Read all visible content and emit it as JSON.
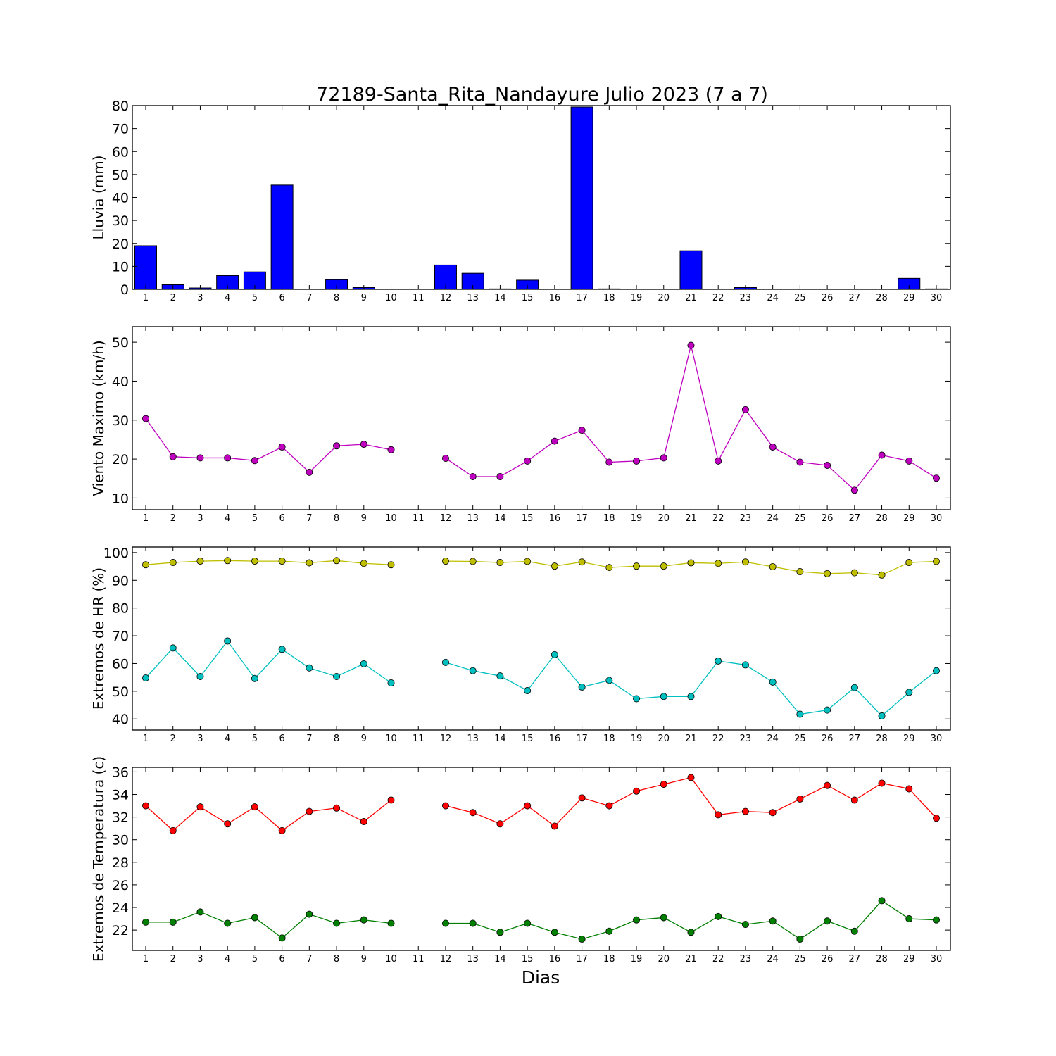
{
  "chart_data": [
    {
      "type": "bar",
      "title": "72189-Santa_Rita_Nandayure Julio 2023  (7 a 7)",
      "ylabel": "Lluvia (mm)",
      "xlabel": "",
      "ylim": [
        0,
        80
      ],
      "yticks": [
        0,
        10,
        20,
        30,
        40,
        50,
        60,
        70,
        80
      ],
      "categories": [
        "1",
        "2",
        "3",
        "4",
        "5",
        "6",
        "7",
        "8",
        "9",
        "10",
        "11",
        "12",
        "13",
        "14",
        "15",
        "16",
        "17",
        "18",
        "19",
        "20",
        "21",
        "22",
        "23",
        "24",
        "25",
        "26",
        "27",
        "28",
        "29",
        "30"
      ],
      "series": [
        {
          "values": [
            19.0,
            2.0,
            0.6,
            6.0,
            7.6,
            45.4,
            0.0,
            4.2,
            0.8,
            0.0,
            null,
            10.6,
            7.0,
            0.2,
            4.0,
            0.0,
            79.4,
            0.2,
            0.0,
            0.0,
            16.8,
            0.0,
            0.8,
            0.0,
            0.0,
            0.0,
            0.0,
            0.0,
            4.8,
            0.2
          ],
          "color": "#0000ff"
        }
      ],
      "grid": false
    },
    {
      "type": "line",
      "title": "",
      "ylabel": "Viento Maximo (km/h)",
      "xlabel": "",
      "ylim": [
        7,
        54
      ],
      "yticks": [
        10,
        20,
        30,
        40,
        50
      ],
      "categories": [
        "1",
        "2",
        "3",
        "4",
        "5",
        "6",
        "7",
        "8",
        "9",
        "10",
        "11",
        "12",
        "13",
        "14",
        "15",
        "16",
        "17",
        "18",
        "19",
        "20",
        "21",
        "22",
        "23",
        "24",
        "25",
        "26",
        "27",
        "28",
        "29",
        "30"
      ],
      "series": [
        {
          "values": [
            30.4,
            20.6,
            20.3,
            20.3,
            19.6,
            23.1,
            16.6,
            23.4,
            23.8,
            22.4,
            null,
            20.2,
            15.5,
            15.5,
            19.5,
            24.6,
            27.4,
            19.2,
            19.5,
            20.3,
            49.2,
            19.5,
            32.7,
            23.1,
            19.2,
            18.4,
            12.0,
            21.0,
            19.5,
            15.1
          ],
          "color": "#bf00bf"
        }
      ],
      "grid": false
    },
    {
      "type": "line",
      "title": "",
      "ylabel": "Extremos de HR (%)",
      "xlabel": "",
      "ylim": [
        36,
        102
      ],
      "yticks": [
        40,
        50,
        60,
        70,
        80,
        90,
        100
      ],
      "categories": [
        "1",
        "2",
        "3",
        "4",
        "5",
        "6",
        "7",
        "8",
        "9",
        "10",
        "11",
        "12",
        "13",
        "14",
        "15",
        "16",
        "17",
        "18",
        "19",
        "20",
        "21",
        "22",
        "23",
        "24",
        "25",
        "26",
        "27",
        "28",
        "29",
        "30"
      ],
      "series": [
        {
          "values": [
            95.6,
            96.4,
            96.9,
            97.1,
            96.9,
            96.9,
            96.3,
            97.1,
            96.1,
            95.6,
            null,
            96.9,
            96.8,
            96.4,
            96.8,
            95.1,
            96.6,
            94.6,
            95.1,
            95.1,
            96.3,
            96.1,
            96.6,
            94.9,
            93.1,
            92.4,
            92.7,
            91.9,
            96.4,
            96.8
          ],
          "color": "#bfbf00"
        },
        {
          "values": [
            54.8,
            65.6,
            55.3,
            68.1,
            54.6,
            65.1,
            58.4,
            55.3,
            59.9,
            53.0,
            null,
            60.4,
            57.4,
            55.5,
            50.2,
            63.2,
            51.5,
            53.9,
            47.3,
            48.1,
            48.1,
            60.9,
            59.5,
            53.3,
            41.7,
            43.2,
            51.3,
            41.1,
            49.6,
            57.4
          ],
          "color": "#00bfbf"
        }
      ],
      "grid": false
    },
    {
      "type": "line",
      "title": "",
      "ylabel": "Extremos de Temperatura (c)",
      "xlabel": "Dias",
      "ylim": [
        20.2,
        36.4
      ],
      "yticks": [
        22,
        24,
        26,
        28,
        30,
        32,
        34,
        36
      ],
      "categories": [
        "1",
        "2",
        "3",
        "4",
        "5",
        "6",
        "7",
        "8",
        "9",
        "10",
        "11",
        "12",
        "13",
        "14",
        "15",
        "16",
        "17",
        "18",
        "19",
        "20",
        "21",
        "22",
        "23",
        "24",
        "25",
        "26",
        "27",
        "28",
        "29",
        "30"
      ],
      "series": [
        {
          "values": [
            33.0,
            30.8,
            32.9,
            31.4,
            32.9,
            30.8,
            32.5,
            32.8,
            31.6,
            33.5,
            null,
            33.0,
            32.4,
            31.4,
            33.0,
            31.2,
            33.7,
            33.0,
            34.3,
            34.9,
            35.5,
            32.2,
            32.5,
            32.4,
            33.6,
            34.8,
            33.5,
            35.0,
            34.5,
            31.9
          ],
          "color": "#ff0000"
        },
        {
          "values": [
            22.7,
            22.7,
            23.6,
            22.6,
            23.1,
            21.3,
            23.4,
            22.6,
            22.9,
            22.6,
            null,
            22.6,
            22.6,
            21.8,
            22.6,
            21.8,
            21.2,
            21.9,
            22.9,
            23.1,
            21.8,
            23.2,
            22.5,
            22.8,
            21.2,
            22.8,
            21.9,
            24.6,
            23.0,
            22.9
          ],
          "color": "#007f00"
        }
      ],
      "grid": false
    }
  ]
}
